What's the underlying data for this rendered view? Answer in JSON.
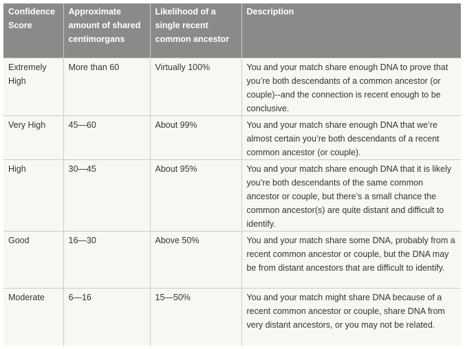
{
  "table": {
    "headers": [
      "Confidence Score",
      "Approximate amount of shared centimorgans",
      "Likelihood of a single recent common ancestor",
      "Description"
    ],
    "rows": [
      {
        "confidence": "Extremely High",
        "centimorgans": "More than 60",
        "likelihood": "Virtually 100%",
        "description": "You and your match share enough DNA to prove that you’re both descendants of a common ancestor (or couple)--and the connection is recent enough to be conclusive."
      },
      {
        "confidence": "Very High",
        "centimorgans": "45—60",
        "likelihood": "About 99%",
        "description": "You and your match share enough DNA that we’re almost certain you’re both descendants of a recent common ancestor (or couple)."
      },
      {
        "confidence": "High",
        "centimorgans": "30—45",
        "likelihood": "About 95%",
        "description": "You and your match share enough DNA that it is likely you’re both descendants of the same common ancestor or couple, but there’s a small chance the common ancestor(s) are quite distant and difficult to identify."
      },
      {
        "confidence": "Good",
        "centimorgans": "16—30",
        "likelihood": "Above 50%",
        "description": "You and your match share some DNA, probably from a recent common ancestor or couple, but the DNA may be from distant ancestors that are difficult to identify."
      },
      {
        "confidence": "Moderate",
        "centimorgans": "6—16",
        "likelihood": "15—50%",
        "description": "You and your match might share DNA because of a recent common ancestor or couple, share DNA from very distant ancestors, or you may not be related."
      }
    ]
  },
  "colors": {
    "header_bg": "#8a8a88",
    "body_bg": "#f7f8f2",
    "border": "#c9ccc2",
    "text": "#333333"
  }
}
